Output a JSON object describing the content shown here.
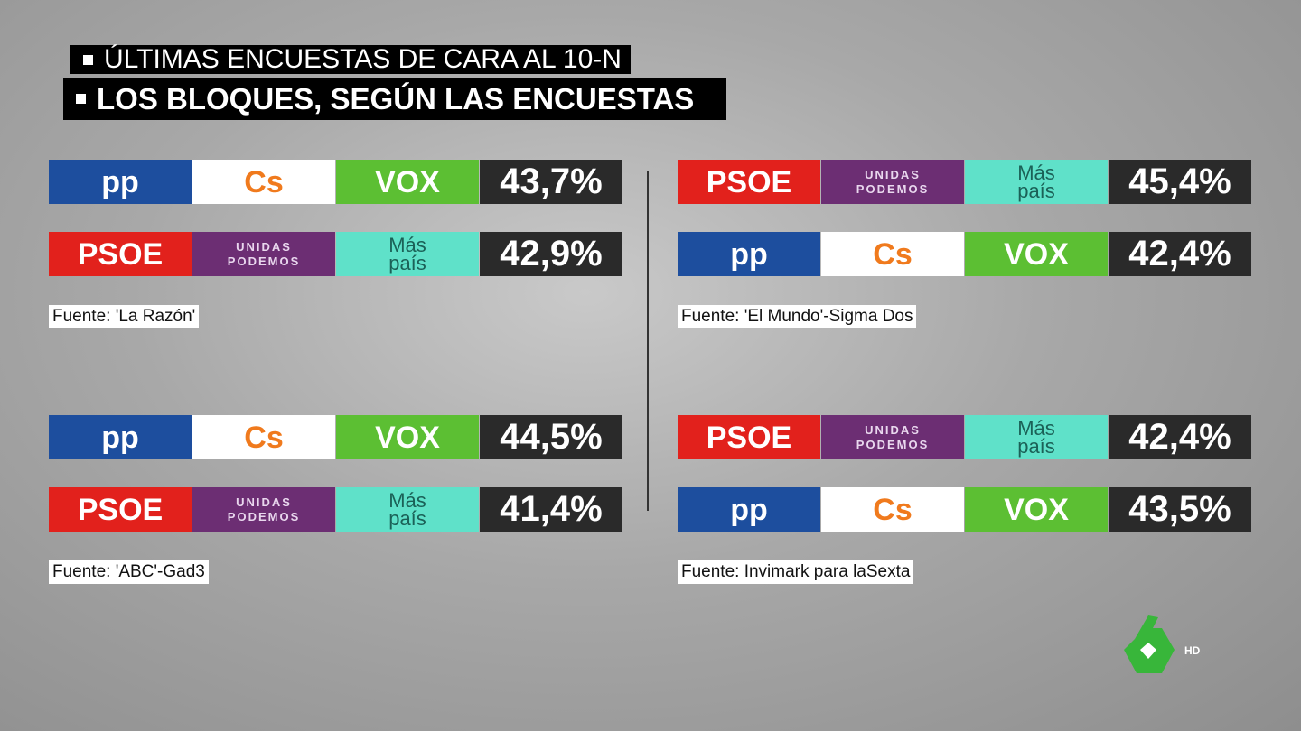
{
  "header": {
    "lines": [
      "ÚLTIMAS ENCUESTAS DE CARA AL 10-N",
      "LOS BLOQUES, SEGÚN LAS ENCUESTAS"
    ]
  },
  "panels": [
    {
      "rows": [
        {
          "parties": [
            {
              "label": "pp",
              "bg": "#1d4e9e",
              "fg": "#ffffff"
            },
            {
              "label": "Cs",
              "bg": "#ffffff",
              "fg": "#f07a1d"
            },
            {
              "label": "VOX",
              "bg": "#5cbf33",
              "fg": "#ffffff"
            }
          ],
          "value": "43,7%"
        },
        {
          "parties": [
            {
              "label": "PSOE",
              "bg": "#e2211c",
              "fg": "#ffffff"
            },
            {
              "label": "UNIDAS PODEMOS",
              "bg": "#6c2e73",
              "fg": "#e9d7ee"
            },
            {
              "label": "Más país",
              "bg": "#5fe1c9",
              "fg": "#1b6157"
            }
          ],
          "value": "42,9%"
        }
      ],
      "source": "Fuente: 'La Razón'"
    },
    {
      "rows": [
        {
          "parties": [
            {
              "label": "PSOE",
              "bg": "#e2211c",
              "fg": "#ffffff"
            },
            {
              "label": "UNIDAS PODEMOS",
              "bg": "#6c2e73",
              "fg": "#e9d7ee"
            },
            {
              "label": "Más país",
              "bg": "#5fe1c9",
              "fg": "#1b6157"
            }
          ],
          "value": "45,4%"
        },
        {
          "parties": [
            {
              "label": "pp",
              "bg": "#1d4e9e",
              "fg": "#ffffff"
            },
            {
              "label": "Cs",
              "bg": "#ffffff",
              "fg": "#f07a1d"
            },
            {
              "label": "VOX",
              "bg": "#5cbf33",
              "fg": "#ffffff"
            }
          ],
          "value": "42,4%"
        }
      ],
      "source": "Fuente: 'El Mundo'-Sigma Dos"
    },
    {
      "rows": [
        {
          "parties": [
            {
              "label": "pp",
              "bg": "#1d4e9e",
              "fg": "#ffffff"
            },
            {
              "label": "Cs",
              "bg": "#ffffff",
              "fg": "#f07a1d"
            },
            {
              "label": "VOX",
              "bg": "#5cbf33",
              "fg": "#ffffff"
            }
          ],
          "value": "44,5%"
        },
        {
          "parties": [
            {
              "label": "PSOE",
              "bg": "#e2211c",
              "fg": "#ffffff"
            },
            {
              "label": "UNIDAS PODEMOS",
              "bg": "#6c2e73",
              "fg": "#e9d7ee"
            },
            {
              "label": "Más país",
              "bg": "#5fe1c9",
              "fg": "#1b6157"
            }
          ],
          "value": "41,4%"
        }
      ],
      "source": "Fuente: 'ABC'-Gad3"
    },
    {
      "rows": [
        {
          "parties": [
            {
              "label": "PSOE",
              "bg": "#e2211c",
              "fg": "#ffffff"
            },
            {
              "label": "UNIDAS PODEMOS",
              "bg": "#6c2e73",
              "fg": "#e9d7ee"
            },
            {
              "label": "Más país",
              "bg": "#5fe1c9",
              "fg": "#1b6157"
            }
          ],
          "value": "42,4%"
        },
        {
          "parties": [
            {
              "label": "pp",
              "bg": "#1d4e9e",
              "fg": "#ffffff"
            },
            {
              "label": "Cs",
              "bg": "#ffffff",
              "fg": "#f07a1d"
            },
            {
              "label": "VOX",
              "bg": "#5cbf33",
              "fg": "#ffffff"
            }
          ],
          "value": "43,5%"
        }
      ],
      "source": "Fuente: Invimark para laSexta"
    }
  ],
  "channel": {
    "badge": "HD"
  }
}
